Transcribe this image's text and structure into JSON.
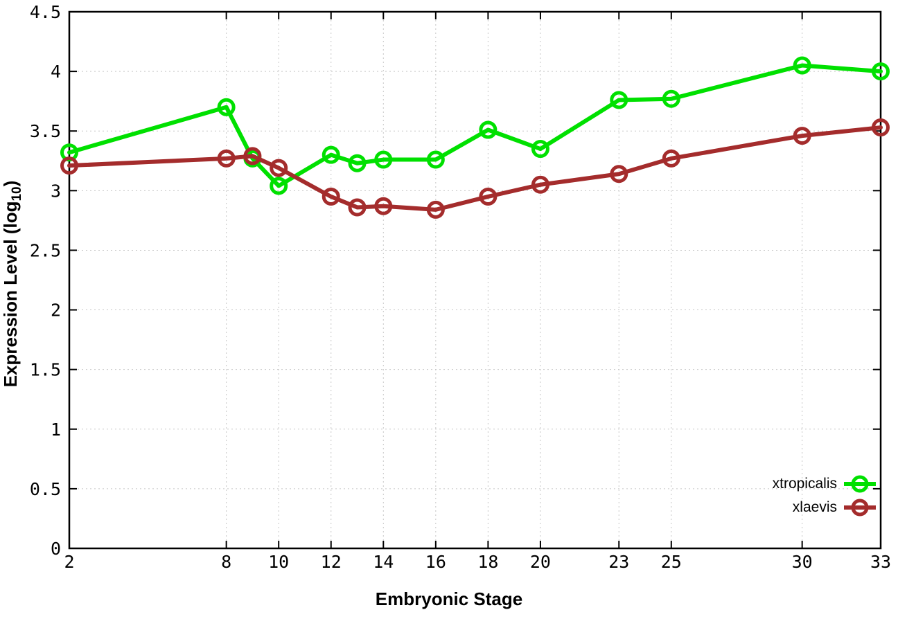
{
  "figure": {
    "background": "#ffffff",
    "border_color": "#000000",
    "grid_color": "#c6c6c6",
    "text_color": "#000000"
  },
  "chart_data": {
    "type": "line",
    "title": "",
    "xlabel": "Embryonic Stage",
    "ylabel_prefix": "Expression Level (log",
    "ylabel_subscript": "10",
    "ylabel_suffix": ")",
    "x": [
      2,
      8,
      9,
      10,
      12,
      13,
      14,
      16,
      18,
      20,
      23,
      25,
      30,
      33
    ],
    "series": [
      {
        "name": "xtropicalis",
        "color": "#00e000",
        "values": [
          3.32,
          3.7,
          3.27,
          3.04,
          3.3,
          3.23,
          3.26,
          3.26,
          3.51,
          3.35,
          3.76,
          3.77,
          4.05,
          4.0
        ]
      },
      {
        "name": "xlaevis",
        "color": "#a42c2c",
        "values": [
          3.21,
          3.27,
          3.29,
          3.19,
          2.95,
          2.86,
          2.87,
          2.84,
          2.95,
          3.05,
          3.14,
          3.27,
          3.46,
          3.53
        ]
      }
    ],
    "xticks": {
      "values": [
        2,
        8,
        10,
        12,
        14,
        16,
        18,
        20,
        23,
        25,
        30,
        33
      ],
      "labels": [
        "2",
        "8",
        "10",
        "12",
        "14",
        "16",
        "18",
        "20",
        "23",
        "25",
        "30",
        "33"
      ]
    },
    "yticks": {
      "values": [
        0,
        0.5,
        1,
        1.5,
        2,
        2.5,
        3,
        3.5,
        4,
        4.5
      ],
      "labels": [
        "0",
        "0.5",
        "1",
        "1.5",
        "2",
        "2.5",
        "3",
        "3.5",
        "4",
        "4.5"
      ]
    },
    "xlim": [
      2,
      33
    ],
    "ylim": [
      0,
      4.5
    ],
    "grid": true,
    "legend_position": "bottom-right",
    "marker": "open-circle"
  }
}
